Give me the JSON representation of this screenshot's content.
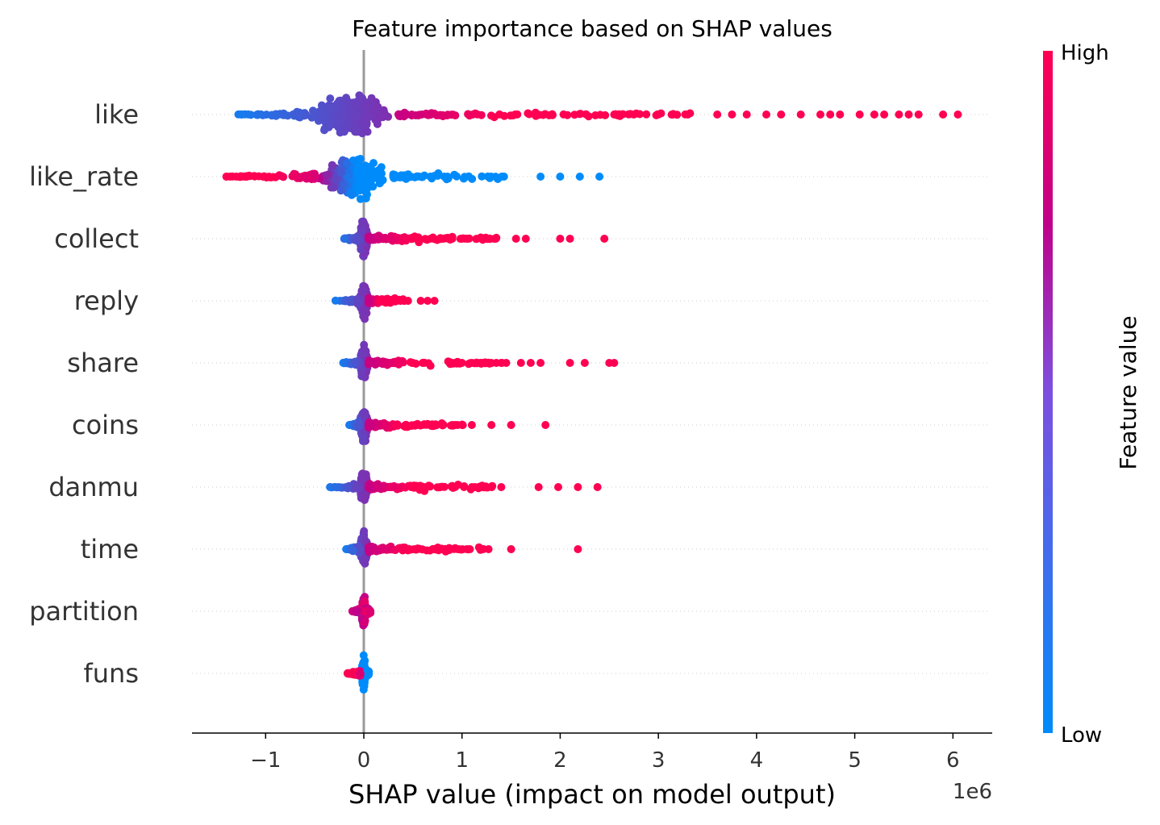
{
  "chart_data": {
    "type": "scatter",
    "title": "Feature importance based on SHAP values",
    "xlabel": "SHAP value (impact on model output)",
    "x_scale_label": "1e6",
    "xlim": [
      -1.75,
      6.4
    ],
    "x_ticks": [
      {
        "value": -1,
        "label": "−1"
      },
      {
        "value": 0,
        "label": "0"
      },
      {
        "value": 1,
        "label": "1"
      },
      {
        "value": 2,
        "label": "2"
      },
      {
        "value": 3,
        "label": "3"
      },
      {
        "value": 4,
        "label": "4"
      },
      {
        "value": 5,
        "label": "5"
      },
      {
        "value": 6,
        "label": "6"
      }
    ],
    "zero_line": 0,
    "grid": "dotted row guides",
    "colorbar": {
      "title": "Feature value",
      "high_label": "High",
      "low_label": "Low",
      "high_color": "#ff0052",
      "mid_color": "#c10089",
      "low_color": "#008bfb"
    },
    "features": [
      {
        "name": "like",
        "min": -1.3,
        "max": 6.05,
        "dense_min": -0.65,
        "dense_max": 0.35,
        "spread": 0.5,
        "high_side": "right",
        "outliers_high": [
          2.6,
          2.75,
          3.0,
          3.15,
          3.3,
          3.6,
          3.75,
          3.9,
          4.1,
          4.25,
          4.45,
          4.65,
          4.75,
          4.85,
          5.05,
          5.2,
          5.3,
          5.45,
          5.55,
          5.65,
          5.9,
          6.05
        ],
        "outliers_low": []
      },
      {
        "name": "like_rate",
        "min": -1.4,
        "max": 2.4,
        "dense_min": -0.5,
        "dense_max": 0.3,
        "spread": 0.5,
        "high_side": "left",
        "outliers_high": [
          -1.4,
          -1.3,
          -1.2
        ],
        "outliers_low": [
          1.8,
          2.0,
          2.2,
          2.4
        ]
      },
      {
        "name": "collect",
        "min": -0.25,
        "max": 2.45,
        "dense_min": -0.05,
        "dense_max": 0.05,
        "spread": 0.45,
        "high_side": "right",
        "outliers_high": [
          0.8,
          0.9,
          1.0,
          1.05,
          1.25,
          1.55,
          1.65,
          2.0,
          2.1,
          2.45
        ],
        "outliers_low": []
      },
      {
        "name": "reply",
        "min": -0.3,
        "max": 0.72,
        "dense_min": -0.05,
        "dense_max": 0.05,
        "spread": 0.4,
        "high_side": "right",
        "outliers_high": [
          0.45,
          0.58,
          0.65,
          0.72
        ],
        "outliers_low": []
      },
      {
        "name": "share",
        "min": -0.22,
        "max": 2.55,
        "dense_min": -0.05,
        "dense_max": 0.05,
        "spread": 0.4,
        "high_side": "right",
        "outliers_high": [
          0.5,
          0.6,
          0.9,
          1.0,
          1.1,
          1.2,
          1.35,
          1.45,
          1.6,
          1.7,
          1.8,
          2.1,
          2.25,
          2.5,
          2.55
        ],
        "outliers_low": []
      },
      {
        "name": "coins",
        "min": -0.15,
        "max": 1.85,
        "dense_min": -0.05,
        "dense_max": 0.05,
        "spread": 0.4,
        "high_side": "right",
        "outliers_high": [
          0.7,
          0.8,
          0.9,
          1.0,
          1.1,
          1.3,
          1.5,
          1.85
        ],
        "outliers_low": []
      },
      {
        "name": "danmu",
        "min": -0.38,
        "max": 2.38,
        "dense_min": -0.05,
        "dense_max": 0.05,
        "spread": 0.4,
        "high_side": "right",
        "outliers_high": [
          1.02,
          1.4,
          1.78,
          1.98,
          2.18,
          2.38
        ],
        "outliers_low": []
      },
      {
        "name": "time",
        "min": -0.18,
        "max": 2.18,
        "dense_min": -0.05,
        "dense_max": 0.05,
        "spread": 0.4,
        "high_side": "right",
        "outliers_high": [
          0.53,
          0.72,
          1.05,
          1.08,
          1.27,
          1.5,
          2.18
        ],
        "outliers_low": []
      },
      {
        "name": "partition",
        "min": -0.12,
        "max": 0.1,
        "dense_min": -0.03,
        "dense_max": 0.03,
        "spread": 0.35,
        "high_side": "mixed",
        "outliers_high": [],
        "outliers_low": []
      },
      {
        "name": "funs",
        "min": -0.18,
        "max": 0.07,
        "dense_min": -0.03,
        "dense_max": 0.03,
        "spread": 0.35,
        "high_side": "left",
        "outliers_high": [],
        "outliers_low": []
      }
    ]
  }
}
